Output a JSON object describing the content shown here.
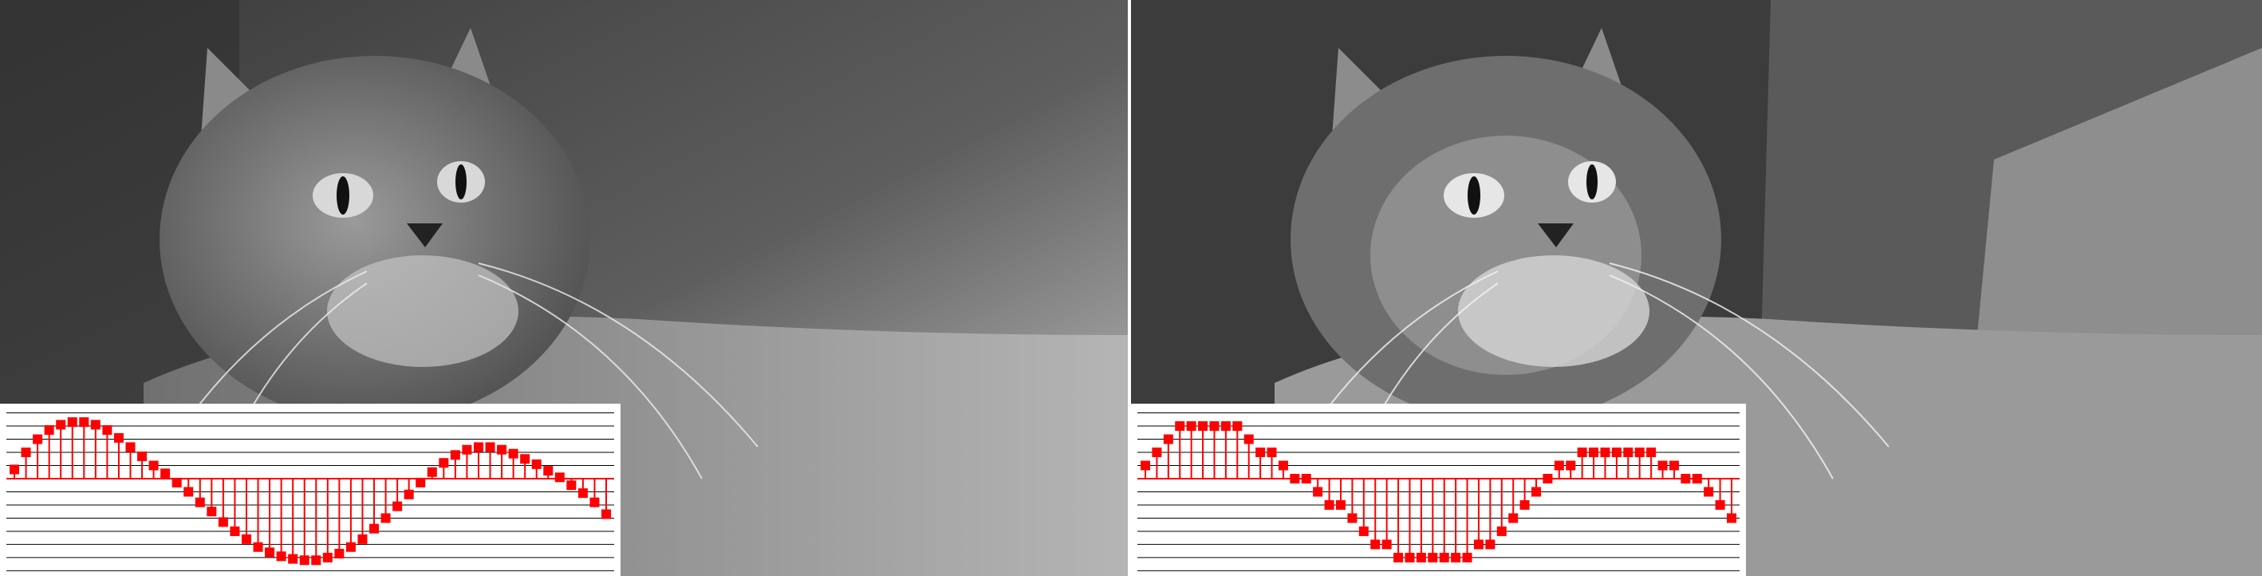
{
  "chart_data": [
    {
      "type": "stem",
      "color": "#ff0000",
      "grid": true,
      "values": [
        0.7,
        2.0,
        3.0,
        3.7,
        4.1,
        4.3,
        4.3,
        4.1,
        3.7,
        3.1,
        2.4,
        1.7,
        1.0,
        0.4,
        -0.3,
        -1.0,
        -1.8,
        -2.5,
        -3.3,
        -4.0,
        -4.6,
        -5.2,
        -5.6,
        -5.9,
        -6.1,
        -6.2,
        -6.2,
        -6.0,
        -5.7,
        -5.2,
        -4.6,
        -3.8,
        -3.0,
        -2.1,
        -1.2,
        -0.3,
        0.5,
        1.2,
        1.8,
        2.2,
        2.4,
        2.4,
        2.2,
        1.9,
        1.5,
        1.1,
        0.6,
        0.1,
        -0.5,
        -1.1,
        -1.8,
        -2.7
      ],
      "ylim": [
        -7.4,
        5.7
      ],
      "yticks": [
        -7,
        -6,
        -5,
        -4,
        -3,
        -2,
        -1,
        0,
        1,
        2,
        3,
        4,
        5
      ]
    },
    {
      "type": "stem",
      "color": "#ff0000",
      "grid": true,
      "values": [
        1,
        2,
        3,
        4,
        4,
        4,
        4,
        4,
        4,
        3,
        2,
        2,
        1,
        0,
        0,
        -1,
        -2,
        -2,
        -3,
        -4,
        -5,
        -5,
        -6,
        -6,
        -6,
        -6,
        -6,
        -6,
        -6,
        -5,
        -5,
        -4,
        -3,
        -2,
        -1,
        0,
        1,
        1,
        2,
        2,
        2,
        2,
        2,
        2,
        2,
        1,
        1,
        0,
        0,
        -1,
        -2,
        -3
      ],
      "ylim": [
        -7.4,
        5.7
      ],
      "yticks": [
        -7,
        -6,
        -5,
        -4,
        -3,
        -2,
        -1,
        0,
        1,
        2,
        3,
        4,
        5
      ]
    }
  ]
}
